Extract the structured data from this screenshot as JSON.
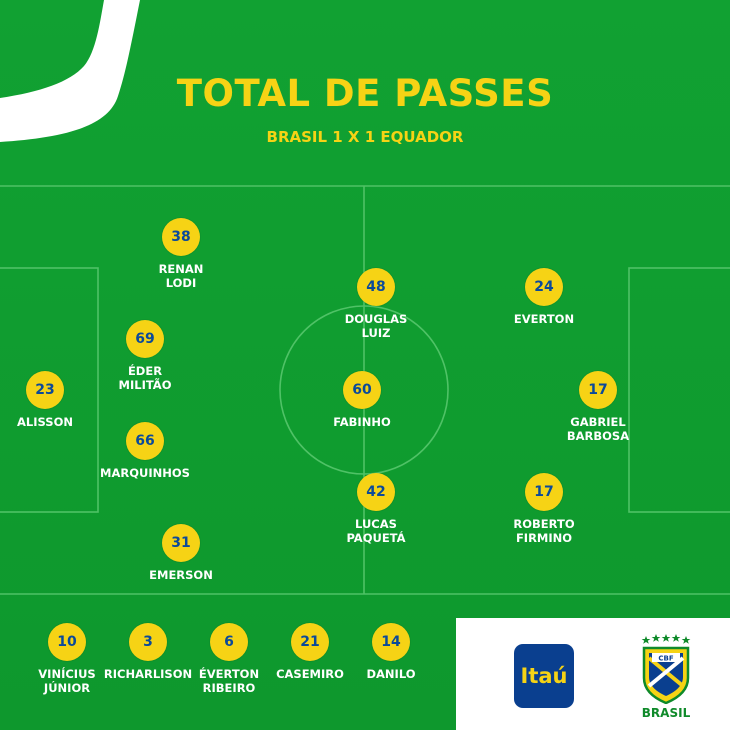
{
  "header": {
    "title": "TOTAL DE PASSES",
    "subtitle": "BRASIL 1 X 1 EQUADOR"
  },
  "colors": {
    "pitch": "#0f9a2e",
    "accent_yellow": "#f6d315",
    "number_blue": "#0b4a9a"
  },
  "starters": [
    {
      "id": "renan-lodi",
      "name": "RENAN\nLODI",
      "passes": "38"
    },
    {
      "id": "eder-militao",
      "name": "ÉDER\nMILITÃO",
      "passes": "69"
    },
    {
      "id": "alisson",
      "name": "ALISSON",
      "passes": "23"
    },
    {
      "id": "marquinhos",
      "name": "MARQUINHOS",
      "passes": "66"
    },
    {
      "id": "emerson",
      "name": "EMERSON",
      "passes": "31"
    },
    {
      "id": "douglas-luiz",
      "name": "DOUGLAS\nLUIZ",
      "passes": "48"
    },
    {
      "id": "fabinho",
      "name": "FABINHO",
      "passes": "60"
    },
    {
      "id": "lucas-paqueta",
      "name": "LUCAS\nPAQUETÁ",
      "passes": "42"
    },
    {
      "id": "everton",
      "name": "EVERTON",
      "passes": "24"
    },
    {
      "id": "gabriel-barbosa",
      "name": "GABRIEL\nBARBOSA",
      "passes": "17"
    },
    {
      "id": "roberto-firmino",
      "name": "ROBERTO\nFIRMINO",
      "passes": "17"
    }
  ],
  "substitutes": [
    {
      "id": "vinicius-junior",
      "name": "VINÍCIUS\nJÚNIOR",
      "passes": "10"
    },
    {
      "id": "richarlison",
      "name": "RICHARLISON",
      "passes": "3"
    },
    {
      "id": "everton-ribeiro",
      "name": "ÉVERTON\nRIBEIRO",
      "passes": "6"
    },
    {
      "id": "casemiro",
      "name": "CASEMIRO",
      "passes": "21"
    },
    {
      "id": "danilo",
      "name": "DANILO",
      "passes": "14"
    }
  ],
  "sponsor": {
    "itau_logo_text": "Itaú",
    "crest_letters": "CBF",
    "crest_label": "BRASIL",
    "icons": [
      "itau-logo",
      "cbf-crest-icon"
    ]
  }
}
